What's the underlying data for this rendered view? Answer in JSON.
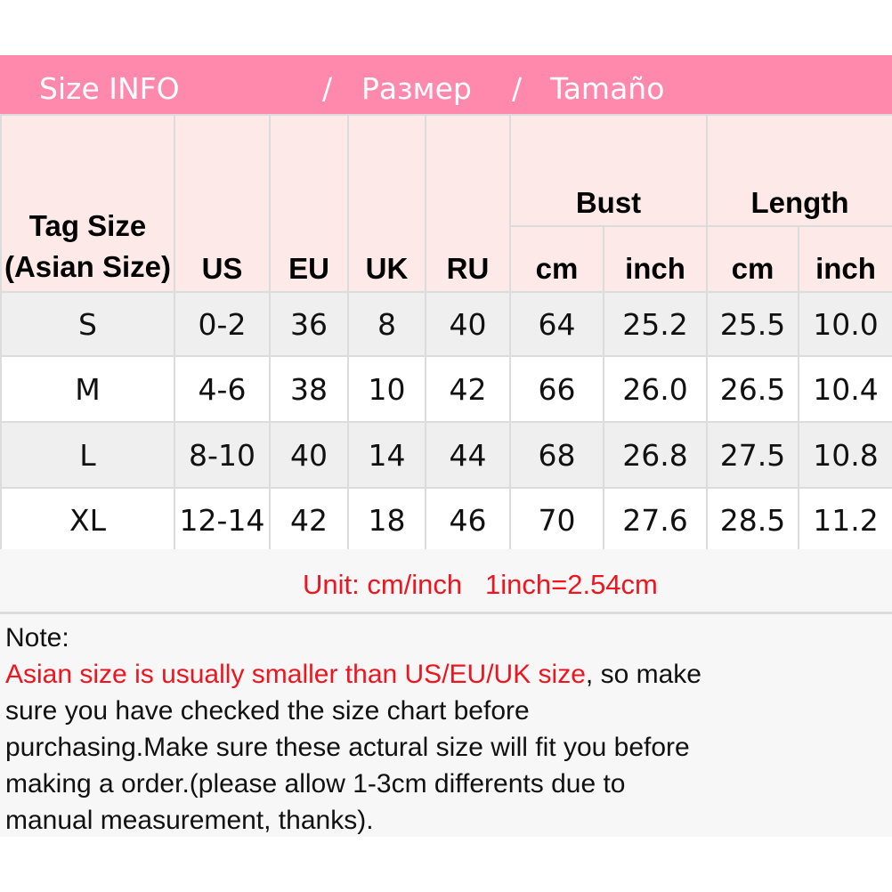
{
  "banner": {
    "title": "Size INFO",
    "sep1": "/",
    "ru": "Размер",
    "sep2": "/",
    "es": "Tamaño"
  },
  "colors": {
    "banner": "#ff88ad",
    "header_bg": "#fde9e7",
    "accent_red": "#f0141e"
  },
  "headers": {
    "tag_size": "Tag Size (Asian Size)",
    "us": "US",
    "eu": "EU",
    "uk": "UK",
    "ru": "RU",
    "bust": "Bust",
    "length": "Length",
    "bust_cm": "cm",
    "bust_inch": "inch",
    "length_cm": "cm",
    "length_inch": "inch"
  },
  "rows": [
    [
      "S",
      "0-2",
      "36",
      "8",
      "40",
      "64",
      "25.2",
      "25.5",
      "10.0"
    ],
    [
      "M",
      "4-6",
      "38",
      "10",
      "42",
      "66",
      "26.0",
      "26.5",
      "10.4"
    ],
    [
      "L",
      "8-10",
      "40",
      "14",
      "44",
      "68",
      "26.8",
      "27.5",
      "10.8"
    ],
    [
      "XL",
      "12-14",
      "42",
      "18",
      "46",
      "70",
      "27.6",
      "28.5",
      "11.2"
    ]
  ],
  "unit": "Unit: cm/inch   1inch=2.54cm",
  "note": {
    "label": "Note:",
    "red": "Asian size is usually smaller than US/EU/UK size",
    "rest1": ", so make",
    "line2": "sure you have checked the size chart before",
    "line3": "purchasing.Make sure these actural size will fit you before",
    "line4": "making a order.(please allow 1-3cm differents due to",
    "line5": "manual measurement, thanks)."
  }
}
